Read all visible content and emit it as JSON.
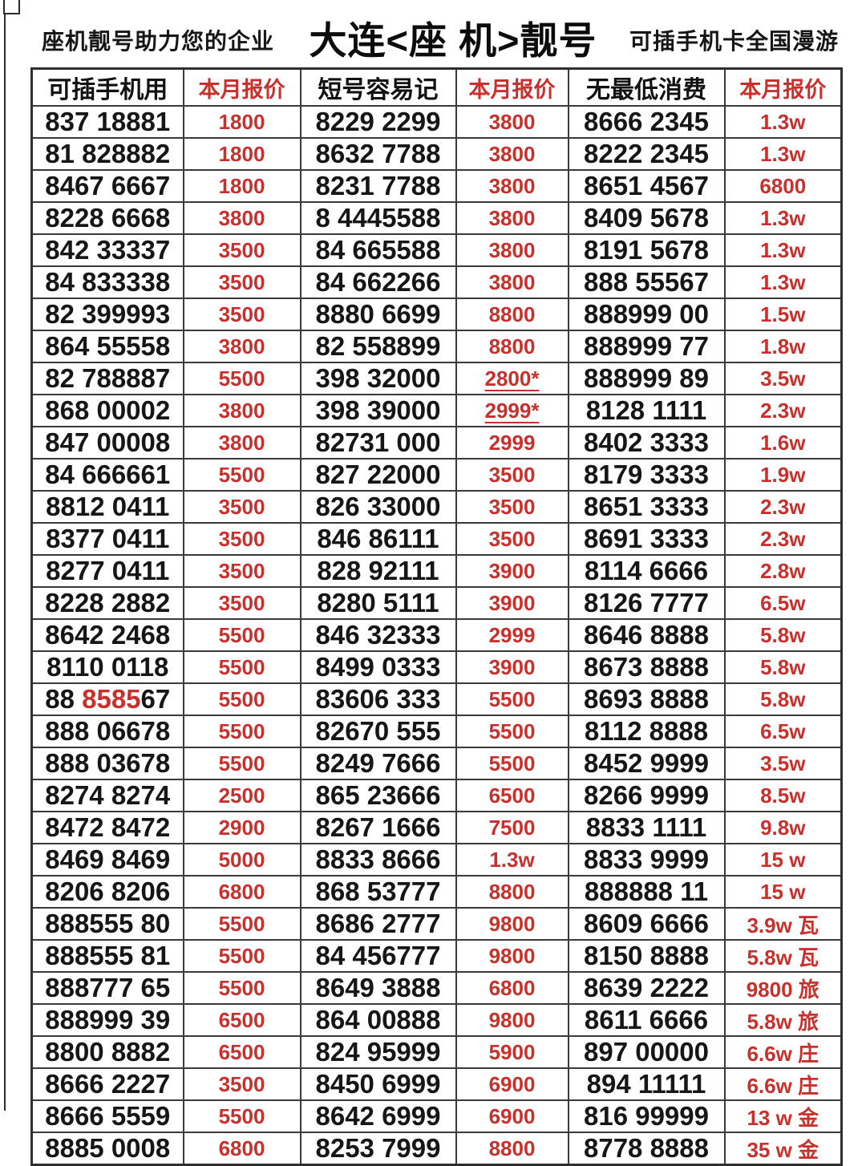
{
  "header": {
    "left": "座机靓号助力您的企业",
    "title": "大连<座 机>靓号",
    "right": "可插手机卡全国漫游"
  },
  "colors": {
    "red": "#c9302c",
    "black": "#161616",
    "border": "#3a3a3a",
    "background": "#ffffff"
  },
  "table": {
    "columns": [
      "可插手机用",
      "本月报价",
      "短号容易记",
      "本月报价",
      "无最低消费",
      "本月报价"
    ],
    "rows": [
      {
        "cells": [
          "837 18881",
          "1800",
          "8229 2299",
          "3800",
          "8666 2345",
          "1.3w"
        ]
      },
      {
        "cells": [
          "81 828882",
          "1800",
          "8632 7788",
          "3800",
          "8222 2345",
          "1.3w"
        ]
      },
      {
        "cells": [
          "8467 6667",
          "1800",
          "8231 7788",
          "3800",
          "8651 4567",
          "6800"
        ]
      },
      {
        "cells": [
          "8228 6668",
          "3800",
          "8 4445588",
          "3800",
          "8409 5678",
          "1.3w"
        ]
      },
      {
        "cells": [
          "842 33337",
          "3500",
          "84 665588",
          "3800",
          "8191 5678",
          "1.3w"
        ]
      },
      {
        "cells": [
          "84 833338",
          "3500",
          "84 662266",
          "3800",
          "888 55567",
          "1.3w"
        ]
      },
      {
        "cells": [
          "82 399993",
          "3500",
          "8880 6699",
          "8800",
          "888999 00",
          "1.5w"
        ]
      },
      {
        "cells": [
          "864 55558",
          "3800",
          "82 558899",
          "8800",
          "888999 77",
          "1.8w"
        ]
      },
      {
        "cells": [
          "82 788887",
          "5500",
          "398 32000",
          "2800*",
          "888999 89",
          "3.5w"
        ],
        "underline": [
          3
        ]
      },
      {
        "cells": [
          "868 00002",
          "3800",
          "398 39000",
          "2999*",
          "8128 1111",
          "2.3w"
        ],
        "underline": [
          3
        ]
      },
      {
        "cells": [
          "847 00008",
          "3800",
          "82731 000",
          "2999",
          "8402 3333",
          "1.6w"
        ]
      },
      {
        "cells": [
          "84 666661",
          "5500",
          "827 22000",
          "3500",
          "8179 3333",
          "1.9w"
        ]
      },
      {
        "cells": [
          "8812 0411",
          "3500",
          "826 33000",
          "3500",
          "8651 3333",
          "2.3w"
        ]
      },
      {
        "cells": [
          "8377 0411",
          "3500",
          "846 86111",
          "3500",
          "8691 3333",
          "2.3w"
        ]
      },
      {
        "cells": [
          "8277 0411",
          "3500",
          "828 92111",
          "3900",
          "8114 6666",
          "2.8w"
        ]
      },
      {
        "cells": [
          "8228 2882",
          "3500",
          "8280 5111",
          "3900",
          "8126 7777",
          "6.5w"
        ]
      },
      {
        "cells": [
          "8642 2468",
          "5500",
          "846 32333",
          "2999",
          "8646 8888",
          "5.8w"
        ]
      },
      {
        "cells": [
          "8110 0118",
          "5500",
          "8499 0333",
          "3900",
          "8673 8888",
          "5.8w"
        ]
      },
      {
        "cells": [
          "88 858567",
          "5500",
          "83606 333",
          "5500",
          "8693 8888",
          "5.8w"
        ],
        "rich": {
          "0": [
            [
              "88 ",
              0
            ],
            [
              "8585",
              1
            ],
            [
              "67",
              0
            ]
          ]
        }
      },
      {
        "cells": [
          "888 06678",
          "5500",
          "82670 555",
          "5500",
          "8112 8888",
          "6.5w"
        ]
      },
      {
        "cells": [
          "888 03678",
          "5500",
          "8249 7666",
          "5500",
          "8452 9999",
          "3.5w"
        ]
      },
      {
        "cells": [
          "8274 8274",
          "2500",
          "865 23666",
          "6500",
          "8266 9999",
          "8.5w"
        ]
      },
      {
        "cells": [
          "8472 8472",
          "2900",
          "8267 1666",
          "7500",
          "8833 1111",
          "9.8w"
        ]
      },
      {
        "cells": [
          "8469 8469",
          "5000",
          "8833 8666",
          "1.3w",
          "8833 9999",
          "15 w"
        ]
      },
      {
        "cells": [
          "8206 8206",
          "6800",
          "868 53777",
          "8800",
          "888888 11",
          "15 w"
        ]
      },
      {
        "cells": [
          "888555 80",
          "5500",
          "8686 2777",
          "9800",
          "8609 6666",
          "3.9w 瓦"
        ]
      },
      {
        "cells": [
          "888555 81",
          "5500",
          "84 456777",
          "9800",
          "8150 8888",
          "5.8w 瓦"
        ]
      },
      {
        "cells": [
          "888777 65",
          "5500",
          "8649 3888",
          "6800",
          "8639 2222",
          "9800 旅"
        ]
      },
      {
        "cells": [
          "888999 39",
          "6500",
          "864 00888",
          "9800",
          "8611 6666",
          "5.8w 旅"
        ]
      },
      {
        "cells": [
          "8800 8882",
          "6500",
          "824 95999",
          "5900",
          "897 00000",
          "6.6w 庄"
        ]
      },
      {
        "cells": [
          "8666 2227",
          "3500",
          "8450 6999",
          "6900",
          "894 11111",
          "6.6w 庄"
        ]
      },
      {
        "cells": [
          "8666 5559",
          "5500",
          "8642 6999",
          "6900",
          "816 99999",
          "13 w 金"
        ]
      },
      {
        "cells": [
          "8885 0008",
          "6800",
          "8253 7999",
          "8800",
          "8778 8888",
          "35 w 金"
        ]
      }
    ]
  }
}
